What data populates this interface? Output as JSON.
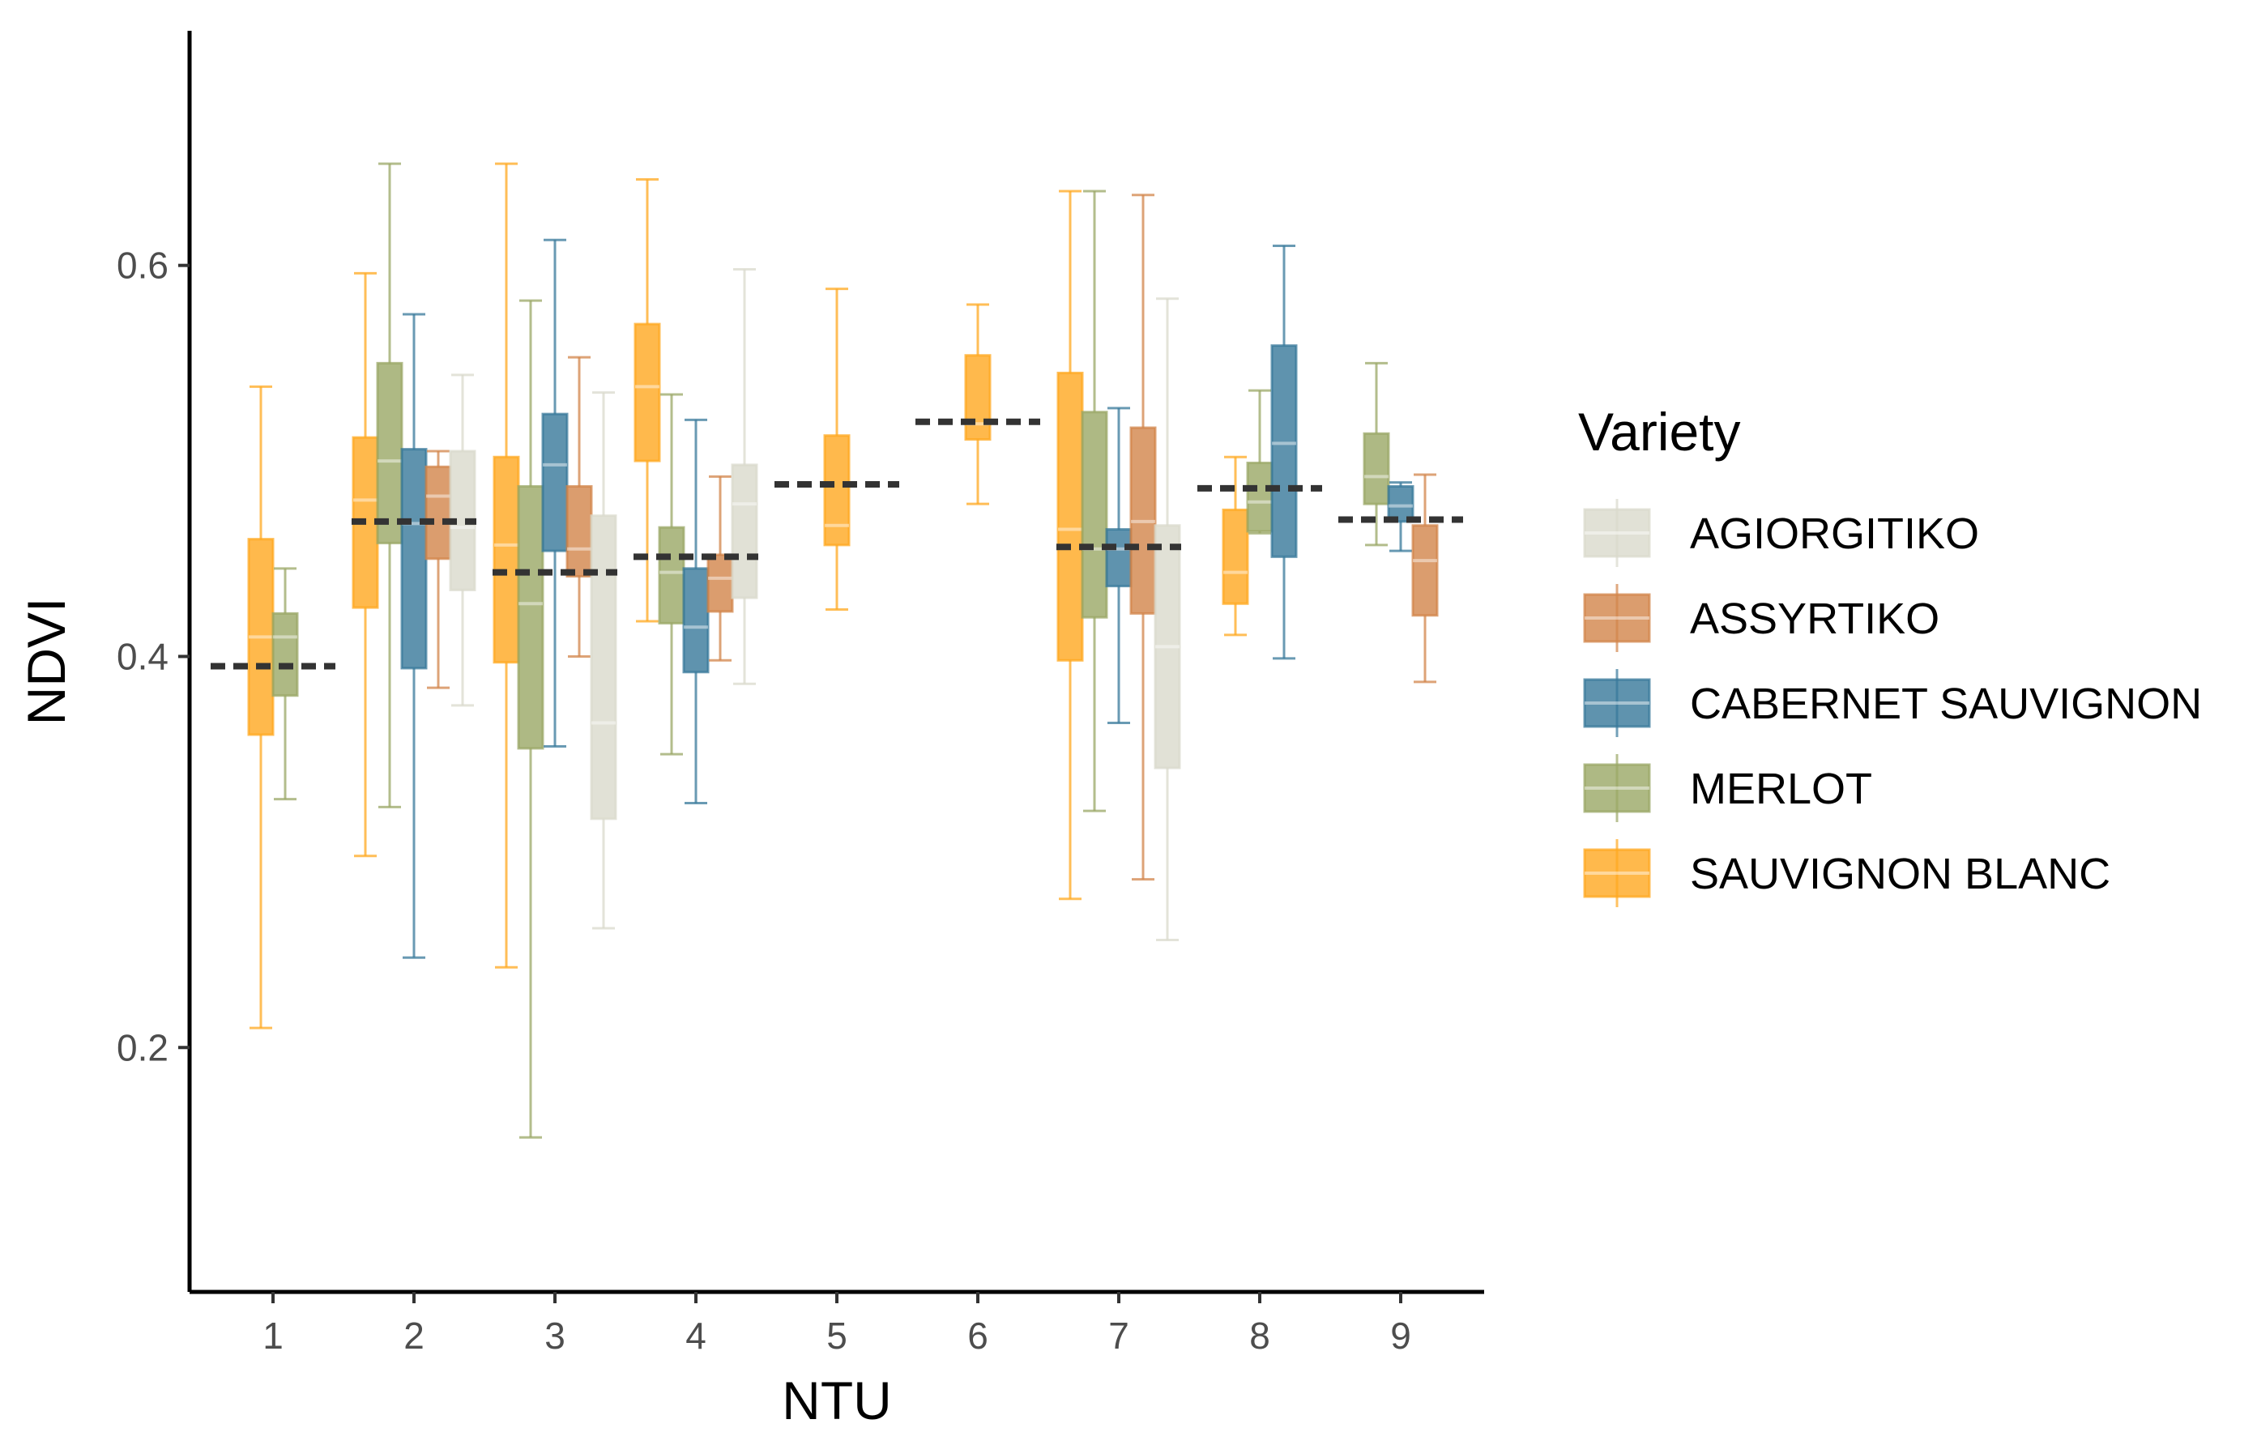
{
  "chart_data": {
    "type": "boxplot",
    "xlabel": "NTU",
    "ylabel": "NDVI",
    "categories": [
      "1",
      "2",
      "3",
      "4",
      "5",
      "6",
      "7",
      "8",
      "9"
    ],
    "ylim": [
      0.075,
      0.72
    ],
    "yticks": [
      0.2,
      0.4,
      0.6
    ],
    "ytick_labels": [
      "0.2",
      "0.4",
      "0.6"
    ],
    "grid": false,
    "legend": {
      "title": "Variety",
      "position": "right",
      "entries": [
        "AGIORGITIKO",
        "ASSYRTIKO",
        "CABERNET SAUVIGNON",
        "MERLOT",
        "SAUVIGNON BLANC"
      ]
    },
    "colors": {
      "AGIORGITIKO": "#d9d9cc",
      "ASSYRTIKO": "#d2844a",
      "CABERNET SAUVIGNON": "#37789a",
      "MERLOT": "#9aa765",
      "SAUVIGNON BLANC": "#ffa81f",
      "mean_line": "#333333",
      "axis": "#000000"
    },
    "series": [
      {
        "name": "SAUVIGNON BLANC",
        "boxes": [
          {
            "x": "1",
            "q1": 0.36,
            "median": 0.41,
            "q3": 0.46,
            "min": 0.21,
            "max": 0.538
          },
          {
            "x": "2",
            "q1": 0.425,
            "median": 0.48,
            "q3": 0.512,
            "min": 0.298,
            "max": 0.596
          },
          {
            "x": "3",
            "q1": 0.397,
            "median": 0.457,
            "q3": 0.502,
            "min": 0.241,
            "max": 0.652
          },
          {
            "x": "4",
            "q1": 0.5,
            "median": 0.538,
            "q3": 0.57,
            "min": 0.418,
            "max": 0.644
          },
          {
            "x": "5",
            "q1": 0.457,
            "median": 0.467,
            "q3": 0.513,
            "min": 0.424,
            "max": 0.588
          },
          {
            "x": "6",
            "q1": 0.511,
            "median": 0.519,
            "q3": 0.554,
            "min": 0.478,
            "max": 0.58
          },
          {
            "x": "7",
            "q1": 0.398,
            "median": 0.465,
            "q3": 0.545,
            "min": 0.276,
            "max": 0.638
          },
          {
            "x": "8",
            "q1": 0.427,
            "median": 0.443,
            "q3": 0.475,
            "min": 0.411,
            "max": 0.502
          }
        ]
      },
      {
        "name": "MERLOT",
        "boxes": [
          {
            "x": "1",
            "q1": 0.38,
            "median": 0.41,
            "q3": 0.422,
            "min": 0.327,
            "max": 0.445
          },
          {
            "x": "2",
            "q1": 0.458,
            "median": 0.5,
            "q3": 0.55,
            "min": 0.323,
            "max": 0.652
          },
          {
            "x": "3",
            "q1": 0.353,
            "median": 0.427,
            "q3": 0.487,
            "min": 0.154,
            "max": 0.582
          },
          {
            "x": "4",
            "q1": 0.417,
            "median": 0.443,
            "q3": 0.466,
            "min": 0.35,
            "max": 0.534
          },
          {
            "x": "7",
            "q1": 0.42,
            "median": 0.455,
            "q3": 0.525,
            "min": 0.321,
            "max": 0.638
          },
          {
            "x": "8",
            "q1": 0.464,
            "median": 0.479,
            "q3": 0.499,
            "min": 0.463,
            "max": 0.536
          },
          {
            "x": "9",
            "q1": 0.478,
            "median": 0.492,
            "q3": 0.514,
            "min": 0.457,
            "max": 0.55
          }
        ]
      },
      {
        "name": "CABERNET SAUVIGNON",
        "boxes": [
          {
            "x": "2",
            "q1": 0.394,
            "median": 0.468,
            "q3": 0.506,
            "min": 0.246,
            "max": 0.575
          },
          {
            "x": "3",
            "q1": 0.454,
            "median": 0.498,
            "q3": 0.524,
            "min": 0.354,
            "max": 0.613
          },
          {
            "x": "4",
            "q1": 0.392,
            "median": 0.415,
            "q3": 0.445,
            "min": 0.325,
            "max": 0.521
          },
          {
            "x": "7",
            "q1": 0.436,
            "median": 0.455,
            "q3": 0.465,
            "min": 0.366,
            "max": 0.527
          },
          {
            "x": "8",
            "q1": 0.451,
            "median": 0.509,
            "q3": 0.559,
            "min": 0.399,
            "max": 0.61
          },
          {
            "x": "9",
            "q1": 0.469,
            "median": 0.477,
            "q3": 0.487,
            "min": 0.454,
            "max": 0.489
          }
        ]
      },
      {
        "name": "ASSYRTIKO",
        "boxes": [
          {
            "x": "2",
            "q1": 0.45,
            "median": 0.482,
            "q3": 0.497,
            "min": 0.384,
            "max": 0.505
          },
          {
            "x": "3",
            "q1": 0.441,
            "median": 0.455,
            "q3": 0.487,
            "min": 0.4,
            "max": 0.553
          },
          {
            "x": "4",
            "q1": 0.423,
            "median": 0.44,
            "q3": 0.452,
            "min": 0.398,
            "max": 0.492
          },
          {
            "x": "7",
            "q1": 0.422,
            "median": 0.469,
            "q3": 0.517,
            "min": 0.286,
            "max": 0.636
          },
          {
            "x": "9",
            "q1": 0.421,
            "median": 0.449,
            "q3": 0.467,
            "min": 0.387,
            "max": 0.493
          }
        ]
      },
      {
        "name": "AGIORGITIKO",
        "boxes": [
          {
            "x": "2",
            "q1": 0.434,
            "median": 0.466,
            "q3": 0.505,
            "min": 0.375,
            "max": 0.544
          },
          {
            "x": "3",
            "q1": 0.317,
            "median": 0.366,
            "q3": 0.472,
            "min": 0.261,
            "max": 0.535
          },
          {
            "x": "4",
            "q1": 0.43,
            "median": 0.478,
            "q3": 0.498,
            "min": 0.386,
            "max": 0.598
          },
          {
            "x": "7",
            "q1": 0.343,
            "median": 0.405,
            "q3": 0.467,
            "min": 0.255,
            "max": 0.583
          }
        ]
      }
    ],
    "means": [
      {
        "x": "1",
        "value": 0.395
      },
      {
        "x": "2",
        "value": 0.469
      },
      {
        "x": "3",
        "value": 0.443
      },
      {
        "x": "4",
        "value": 0.451
      },
      {
        "x": "5",
        "value": 0.488
      },
      {
        "x": "6",
        "value": 0.52
      },
      {
        "x": "7",
        "value": 0.456
      },
      {
        "x": "8",
        "value": 0.486
      },
      {
        "x": "9",
        "value": 0.47
      }
    ]
  }
}
